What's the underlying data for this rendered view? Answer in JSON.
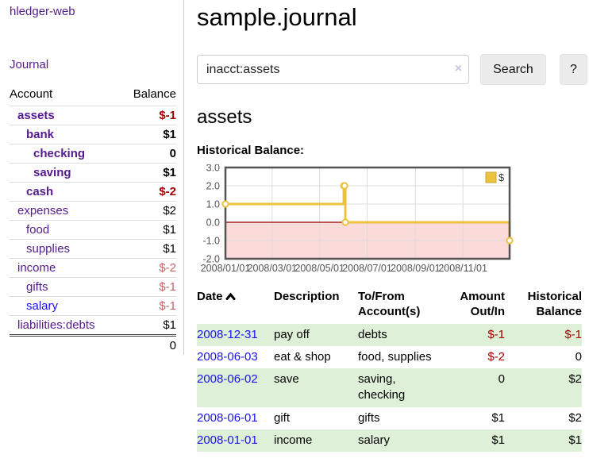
{
  "palette": {
    "visited_link": "#551a8b",
    "unvisited_link": "#1a12ee",
    "negative": "#a40000",
    "negative_light": "#c06464",
    "row_green": "#dff0d8",
    "chart_series": "#edc240",
    "chart_negative_fill": "#fbdada",
    "chart_zero_line": "#8b0000",
    "chart_border": "#545454",
    "chart_grid": "#dcdcdc",
    "axis_text": "#545454"
  },
  "sidebar": {
    "brand": "hledger-web",
    "journal_link": "Journal",
    "accounts_table": {
      "headers": [
        "Account",
        "Balance"
      ],
      "rows": [
        {
          "account": "assets",
          "depth": 1,
          "bold": true,
          "link": "visited",
          "balance": "$-1",
          "balance_style": "neg"
        },
        {
          "account": "bank",
          "depth": 2,
          "bold": true,
          "link": "visited",
          "balance": "$1",
          "balance_style": ""
        },
        {
          "account": "checking",
          "depth": 3,
          "bold": true,
          "link": "visited",
          "balance": "0",
          "balance_style": ""
        },
        {
          "account": "saving",
          "depth": 3,
          "bold": true,
          "link": "visited",
          "balance": "$1",
          "balance_style": ""
        },
        {
          "account": "cash",
          "depth": 2,
          "bold": true,
          "link": "visited",
          "balance": "$-2",
          "balance_style": "neg"
        },
        {
          "account": "expenses",
          "depth": 1,
          "bold": false,
          "link": "visited",
          "balance": "$2",
          "balance_style": ""
        },
        {
          "account": "food",
          "depth": 2,
          "bold": false,
          "link": "visited",
          "balance": "$1",
          "balance_style": ""
        },
        {
          "account": "supplies",
          "depth": 2,
          "bold": false,
          "link": "visited",
          "balance": "$1",
          "balance_style": ""
        },
        {
          "account": "income",
          "depth": 1,
          "bold": false,
          "link": "visited",
          "balance": "$-2",
          "balance_style": "neg-light"
        },
        {
          "account": "gifts",
          "depth": 2,
          "bold": false,
          "link": "visited",
          "balance": "$-1",
          "balance_style": "neg-light"
        },
        {
          "account": "salary",
          "depth": 2,
          "bold": false,
          "link": "new",
          "balance": "$-1",
          "balance_style": "neg-light"
        },
        {
          "account": "liabilities:debts",
          "depth": 1,
          "bold": false,
          "link": "visited",
          "balance": "$1",
          "balance_style": ""
        }
      ],
      "total": "0"
    }
  },
  "main": {
    "title": "sample.journal",
    "search": {
      "value": "inacct:assets",
      "clear_icon": "×",
      "button_label": "Search",
      "help_label": "?"
    },
    "account_heading": "assets",
    "chart_label": "Historical Balance:",
    "register": {
      "headers": [
        "Date",
        "Description",
        "To/From Account(s)",
        "Amount Out/In",
        "Historical Balance"
      ],
      "rows": [
        {
          "date": "2008-12-31",
          "description": "pay off",
          "accounts": "debts",
          "amount": "$-1",
          "amount_style": "neg",
          "balance": "$-1",
          "balance_style": "neg",
          "shaded": true
        },
        {
          "date": "2008-06-03",
          "description": "eat & shop",
          "accounts": "food, supplies",
          "amount": "$-2",
          "amount_style": "neg",
          "balance": "0",
          "balance_style": "",
          "shaded": false
        },
        {
          "date": "2008-06-02",
          "description": "save",
          "accounts": "saving, checking",
          "amount": "0",
          "amount_style": "",
          "balance": "$2",
          "balance_style": "",
          "shaded": true
        },
        {
          "date": "2008-06-01",
          "description": "gift",
          "accounts": "gifts",
          "amount": "$1",
          "amount_style": "",
          "balance": "$2",
          "balance_style": "",
          "shaded": false
        },
        {
          "date": "2008-01-01",
          "description": "income",
          "accounts": "salary",
          "amount": "$1",
          "amount_style": "",
          "balance": "$1",
          "balance_style": "",
          "shaded": true
        }
      ]
    }
  },
  "chart_data": {
    "type": "line",
    "title": "Historical Balance:",
    "step": true,
    "legend": [
      {
        "label": "$",
        "color": "#edc240"
      }
    ],
    "legend_position": "top-right",
    "points": [
      {
        "date": "2008-01-01",
        "value": 1
      },
      {
        "date": "2008-06-01",
        "value": 2
      },
      {
        "date": "2008-06-02",
        "value": 2
      },
      {
        "date": "2008-06-03",
        "value": 0
      },
      {
        "date": "2008-12-31",
        "value": -1
      }
    ],
    "xlim": [
      "2008-01-01",
      "2008-12-31"
    ],
    "ylim": [
      -2,
      3
    ],
    "yticks": [
      3,
      2,
      1,
      0,
      -1,
      -2
    ],
    "xticks": [
      {
        "label": "2008/01/01",
        "date": "2008-01-01"
      },
      {
        "label": "2008/03/01",
        "date": "2008-03-01"
      },
      {
        "label": "2008/05/01",
        "date": "2008-05-01"
      },
      {
        "label": "2008/07/01",
        "date": "2008-07-01"
      },
      {
        "label": "2008/09/01",
        "date": "2008-09-01"
      },
      {
        "label": "2008/11/01",
        "date": "2008-11-01"
      }
    ],
    "grid": true,
    "negative_region_shaded": true
  }
}
